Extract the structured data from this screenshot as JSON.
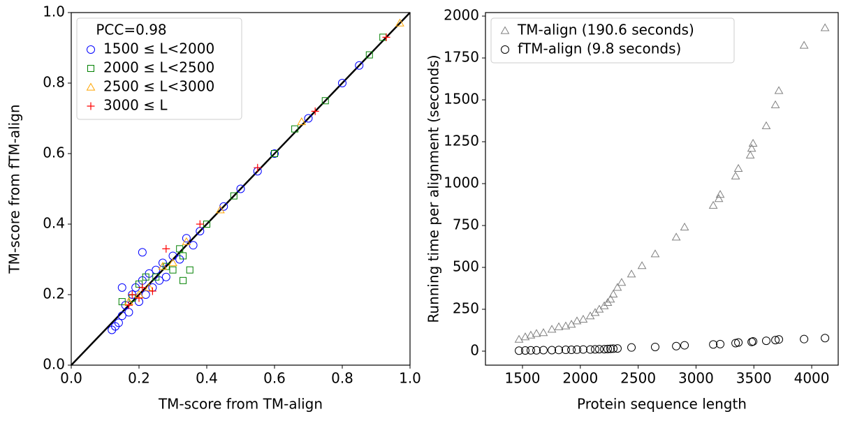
{
  "chart_data": [
    {
      "type": "scatter",
      "xlabel": "TM-score from TM-align",
      "ylabel": "TM-score from fTM-align",
      "xlim": [
        0,
        1
      ],
      "ylim": [
        0,
        1
      ],
      "xticks": [
        {
          "value": 0,
          "label": "0.0"
        },
        {
          "value": 0.2,
          "label": "0.2"
        },
        {
          "value": 0.4,
          "label": "0.4"
        },
        {
          "value": 0.6,
          "label": "0.6"
        },
        {
          "value": 0.8,
          "label": "0.8"
        },
        {
          "value": 1,
          "label": "1.0"
        }
      ],
      "yticks": [
        {
          "value": 0,
          "label": "0.0"
        },
        {
          "value": 0.2,
          "label": "0.2"
        },
        {
          "value": 0.4,
          "label": "0.4"
        },
        {
          "value": 0.6,
          "label": "0.6"
        },
        {
          "value": 0.8,
          "label": "0.8"
        },
        {
          "value": 1,
          "label": "1.0"
        }
      ],
      "legend_title": "PCC=0.98",
      "legend": "upper left",
      "diagonal": true,
      "series": [
        {
          "name": "1500 ≤ L<2000",
          "color": "#0000ff",
          "marker": "circle",
          "x": [
            0.12,
            0.13,
            0.14,
            0.15,
            0.16,
            0.17,
            0.18,
            0.19,
            0.2,
            0.21,
            0.22,
            0.23,
            0.24,
            0.25,
            0.26,
            0.27,
            0.28,
            0.3,
            0.32,
            0.34,
            0.36,
            0.38,
            0.45,
            0.5,
            0.55,
            0.6,
            0.7,
            0.8,
            0.85,
            0.21,
            0.15
          ],
          "values": [
            0.1,
            0.11,
            0.12,
            0.14,
            0.17,
            0.15,
            0.2,
            0.22,
            0.18,
            0.24,
            0.2,
            0.26,
            0.22,
            0.27,
            0.24,
            0.29,
            0.25,
            0.31,
            0.3,
            0.36,
            0.34,
            0.38,
            0.45,
            0.5,
            0.55,
            0.6,
            0.7,
            0.8,
            0.85,
            0.32,
            0.22
          ]
        },
        {
          "name": "2000 ≤ L<2500",
          "color": "#008000",
          "marker": "square",
          "x": [
            0.15,
            0.18,
            0.2,
            0.22,
            0.25,
            0.28,
            0.3,
            0.32,
            0.33,
            0.35,
            0.33,
            0.4,
            0.48,
            0.6,
            0.66,
            0.75,
            0.88,
            0.92
          ],
          "values": [
            0.18,
            0.19,
            0.23,
            0.25,
            0.25,
            0.28,
            0.27,
            0.33,
            0.31,
            0.27,
            0.24,
            0.4,
            0.48,
            0.6,
            0.67,
            0.75,
            0.88,
            0.93
          ]
        },
        {
          "name": "2500 ≤ L<3000",
          "color": "#ffa500",
          "marker": "triangle",
          "x": [
            0.17,
            0.2,
            0.23,
            0.27,
            0.3,
            0.34,
            0.44,
            0.68,
            0.97
          ],
          "values": [
            0.18,
            0.2,
            0.22,
            0.28,
            0.29,
            0.35,
            0.44,
            0.69,
            0.97
          ]
        },
        {
          "name": "3000 ≤ L",
          "color": "#ff0000",
          "marker": "plus",
          "x": [
            0.17,
            0.18,
            0.2,
            0.21,
            0.24,
            0.28,
            0.38,
            0.55,
            0.72,
            0.93
          ],
          "values": [
            0.17,
            0.2,
            0.19,
            0.22,
            0.21,
            0.33,
            0.4,
            0.56,
            0.72,
            0.93
          ]
        }
      ]
    },
    {
      "type": "scatter",
      "xlabel": "Protein sequence length",
      "ylabel": "Running time per alignment (seconds)",
      "xlim": [
        1180,
        4229
      ],
      "ylim": [
        -83.5,
        2021
      ],
      "xticks": [
        1500,
        2000,
        2500,
        3000,
        3500,
        4000
      ],
      "yticks": [
        0,
        250,
        500,
        750,
        1000,
        1250,
        1500,
        1750,
        2000
      ],
      "legend": "upper left",
      "series": [
        {
          "name": "TM-align (190.6 seconds)",
          "color": "#808080",
          "marker": "triangle",
          "x": [
            1470,
            1524,
            1572,
            1621,
            1681,
            1754,
            1814,
            1874,
            1923,
            1971,
            2025,
            2086,
            2128,
            2164,
            2207,
            2237,
            2261,
            2285,
            2321,
            2357,
            2442,
            2533,
            2647,
            2829,
            2901,
            3149,
            3197,
            3209,
            3342,
            3366,
            3469,
            3481,
            3493,
            3607,
            3686,
            3716,
            3934,
            4115
          ],
          "values": [
            70,
            85,
            95,
            105,
            110,
            130,
            145,
            150,
            160,
            180,
            190,
            210,
            230,
            250,
            270,
            290,
            310,
            340,
            380,
            410,
            460,
            510,
            580,
            680,
            740,
            870,
            910,
            935,
            1045,
            1090,
            1170,
            1210,
            1240,
            1345,
            1470,
            1555,
            1825,
            1930
          ]
        },
        {
          "name": "fTM-align (9.8 seconds)",
          "color": "#000000",
          "marker": "circle",
          "x": [
            1470,
            1524,
            1572,
            1621,
            1681,
            1754,
            1814,
            1874,
            1923,
            1971,
            2025,
            2086,
            2128,
            2164,
            2207,
            2237,
            2261,
            2285,
            2321,
            2442,
            2647,
            2829,
            2901,
            3149,
            3209,
            3342,
            3366,
            3481,
            3493,
            3607,
            3686,
            3716,
            3934,
            4115
          ],
          "values": [
            3,
            4,
            5,
            5,
            6,
            6,
            7,
            8,
            8,
            9,
            10,
            10,
            11,
            12,
            12,
            13,
            14,
            15,
            16,
            22,
            25,
            30,
            35,
            40,
            42,
            48,
            52,
            55,
            58,
            62,
            66,
            70,
            72,
            78
          ]
        }
      ]
    }
  ]
}
